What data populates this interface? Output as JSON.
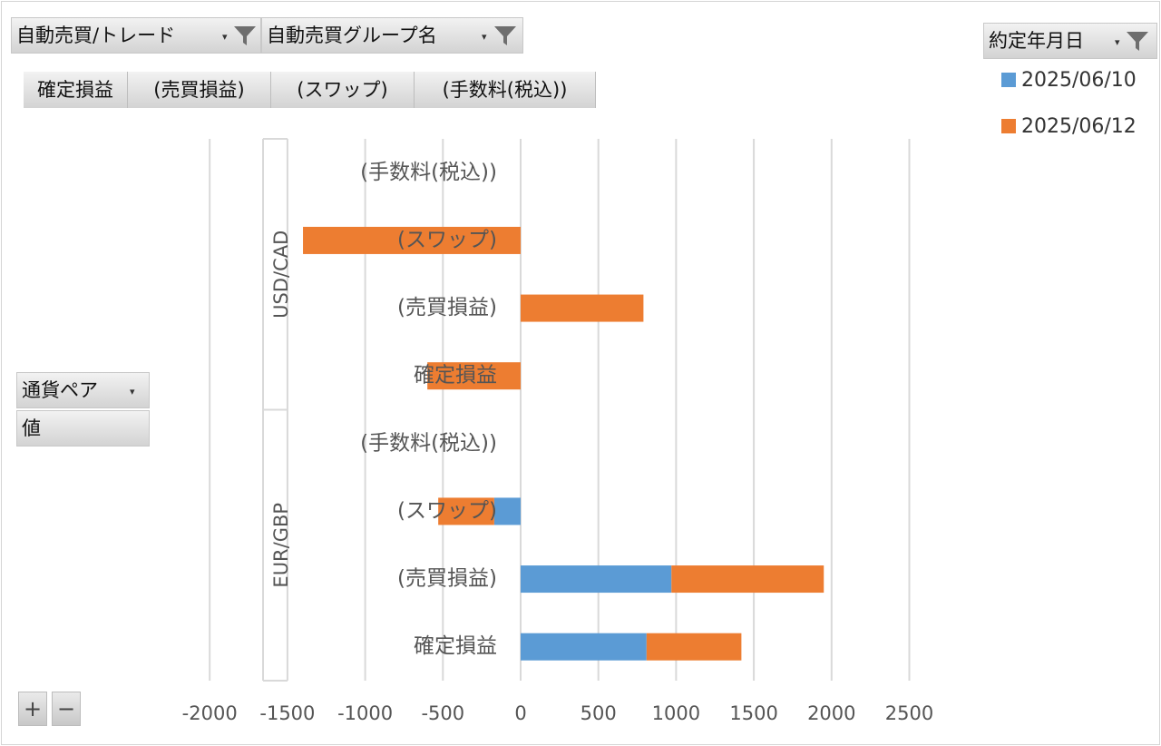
{
  "filters": {
    "trade": "自動売買/トレード",
    "group": "自動売買グループ名",
    "date": "約定年月日",
    "currency_pair": "通貨ペア",
    "values": "値"
  },
  "value_buttons": [
    "確定損益",
    "(売買損益)",
    "(スワップ)",
    "(手数料(税込))"
  ],
  "controls": {
    "plus": "+",
    "minus": "−"
  },
  "colors": {
    "series1": "#5b9bd5",
    "series2": "#ed7d31",
    "grid": "#d9d9d9"
  },
  "chart_data": {
    "type": "bar",
    "orientation": "horizontal",
    "stacked": true,
    "xlim": [
      -2000,
      2500
    ],
    "xticks": [
      -2000,
      -1500,
      -1000,
      -500,
      0,
      500,
      1000,
      1500,
      2000,
      2500
    ],
    "grid": true,
    "legend_position": "top-right",
    "groups": [
      {
        "name": "USD/CAD",
        "categories": [
          "(手数料(税込))",
          "(スワップ)",
          "(売買損益)",
          "確定損益"
        ]
      },
      {
        "name": "EUR/GBP",
        "categories": [
          "(手数料(税込))",
          "(スワップ)",
          "(売買損益)",
          "確定損益"
        ]
      }
    ],
    "series": [
      {
        "name": "2025/06/10",
        "color": "#5b9bd5",
        "values": [
          [
            0,
            0,
            0,
            0
          ],
          [
            0,
            -170,
            970,
            810
          ]
        ]
      },
      {
        "name": "2025/06/12",
        "color": "#ed7d31",
        "values": [
          [
            0,
            -1400,
            790,
            -600
          ],
          [
            0,
            -360,
            980,
            610
          ]
        ]
      }
    ]
  }
}
